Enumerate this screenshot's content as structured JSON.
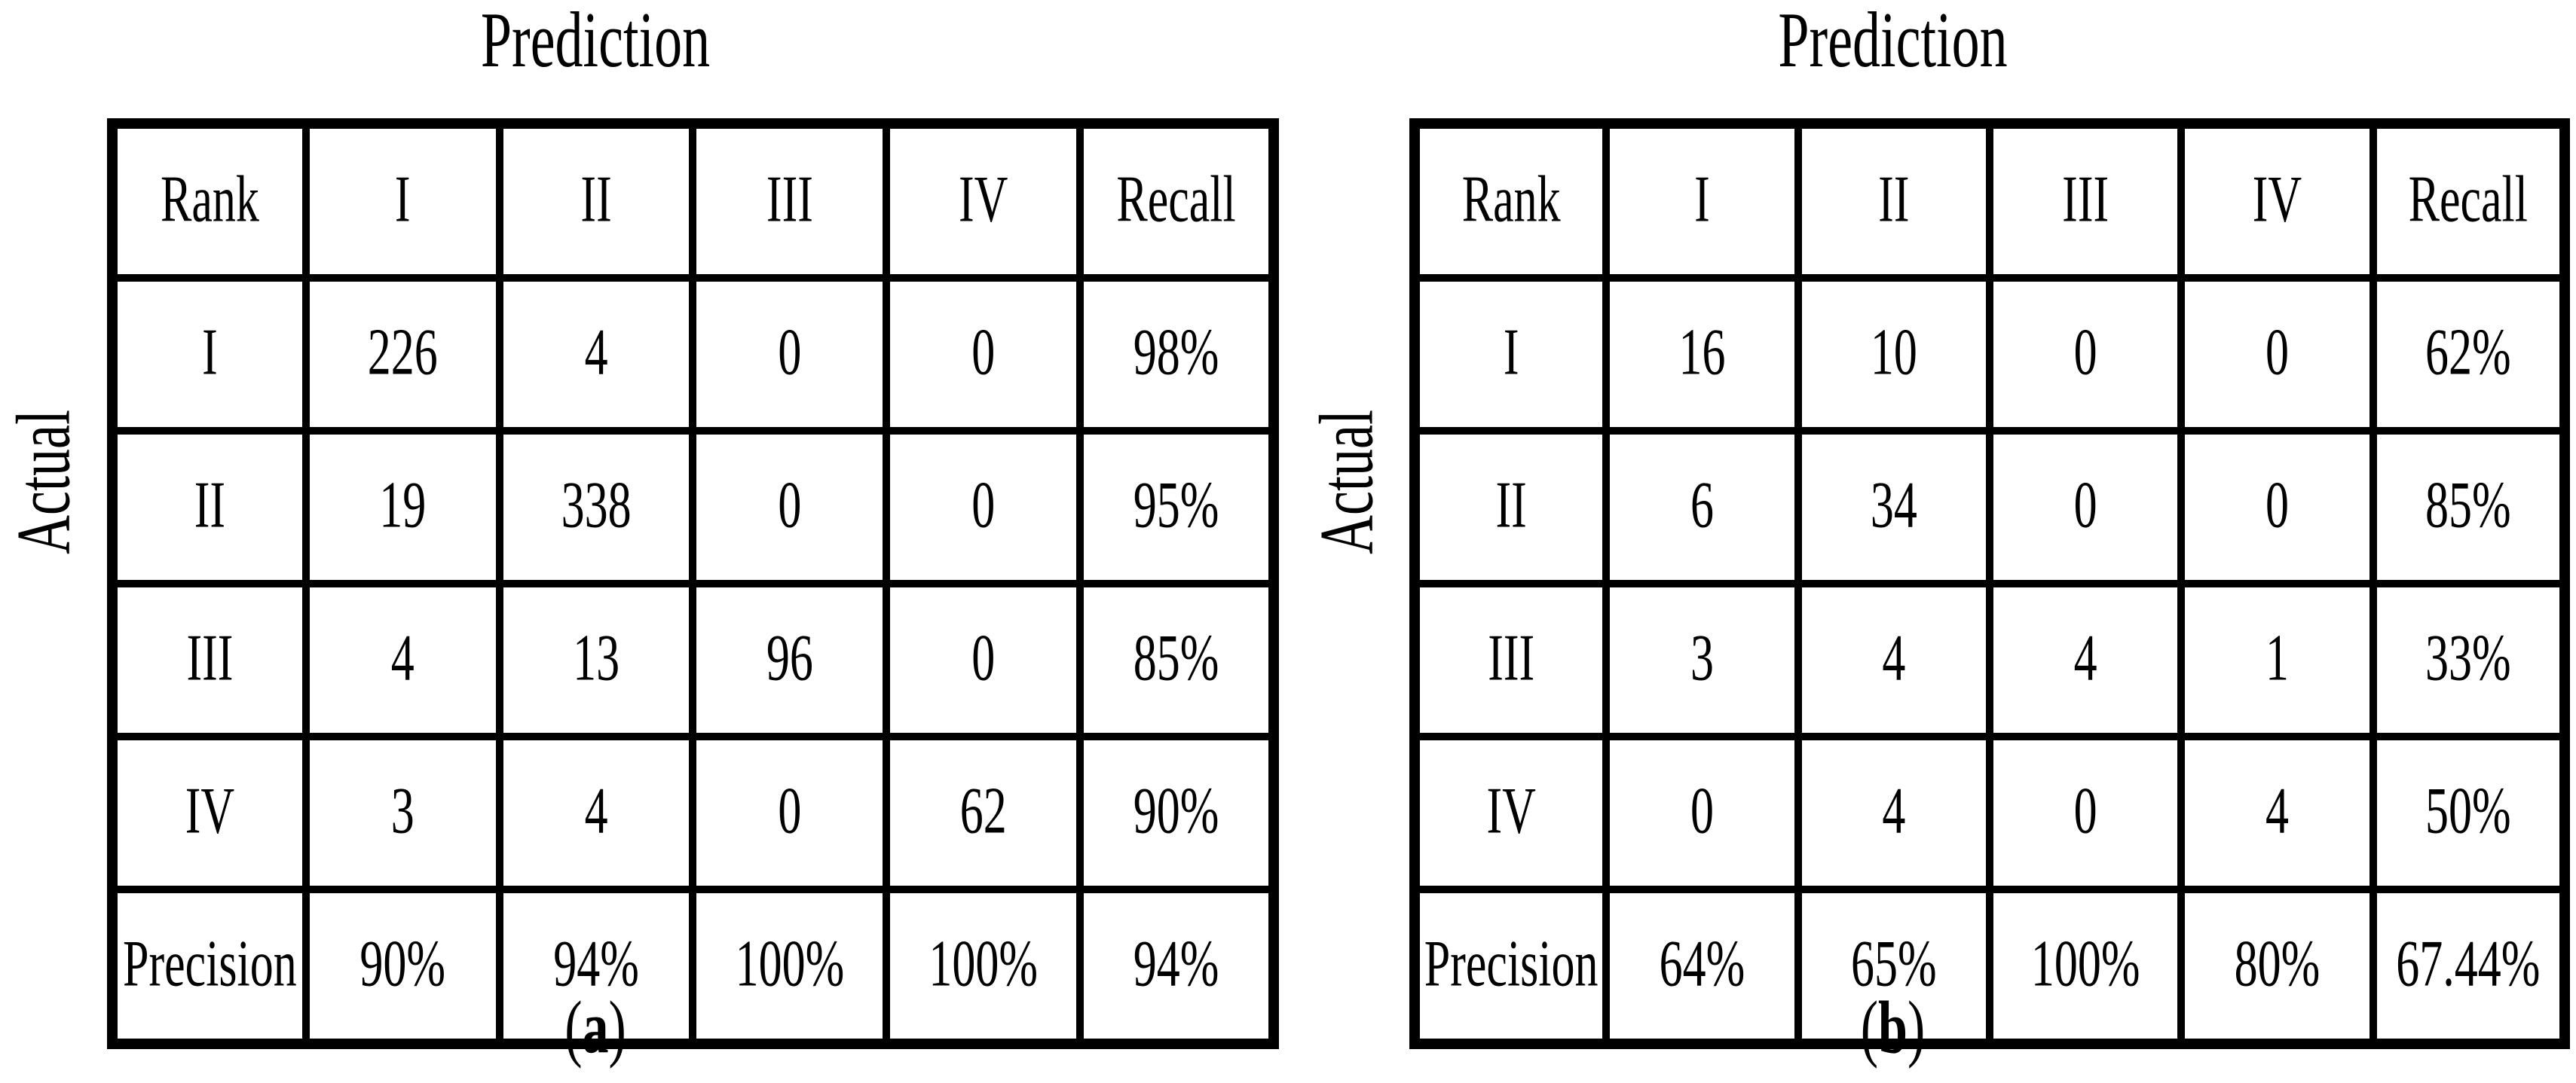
{
  "figure_type": "confusion-matrix-pair",
  "colors": {
    "diagonal_rank_i": "#FBE2D5",
    "diagonal_rank_ii": "#BDD7EE",
    "diagonal_rank_iii": "#D9D9D9",
    "diagonal_rank_iv": "#C6E0B4",
    "metric_cell_bg": "#F2F2F2",
    "overall_accuracy_bg": "#FFFF00",
    "grid_border": "#000000"
  },
  "panels": [
    {
      "title": "Prediction",
      "axis_label": "Actual",
      "caption_open": "(",
      "caption_letter": "a",
      "caption_close": ")",
      "header": [
        "Rank",
        "I",
        "II",
        "III",
        "IV",
        "Recall"
      ],
      "rows": [
        {
          "label": "I",
          "values": [
            "226",
            "4",
            "0",
            "0",
            "98%"
          ]
        },
        {
          "label": "II",
          "values": [
            "19",
            "338",
            "0",
            "0",
            "95%"
          ]
        },
        {
          "label": "III",
          "values": [
            "4",
            "13",
            "96",
            "0",
            "85%"
          ]
        },
        {
          "label": "IV",
          "values": [
            "3",
            "4",
            "0",
            "62",
            "90%"
          ]
        },
        {
          "label": "Precision",
          "values": [
            "90%",
            "94%",
            "100%",
            "100%",
            "94%"
          ]
        }
      ]
    },
    {
      "title": "Prediction",
      "axis_label": "Actual",
      "caption_open": "(",
      "caption_letter": "b",
      "caption_close": ")",
      "header": [
        "Rank",
        "I",
        "II",
        "III",
        "IV",
        "Recall"
      ],
      "rows": [
        {
          "label": "I",
          "values": [
            "16",
            "10",
            "0",
            "0",
            "62%"
          ]
        },
        {
          "label": "II",
          "values": [
            "6",
            "34",
            "0",
            "0",
            "85%"
          ]
        },
        {
          "label": "III",
          "values": [
            "3",
            "4",
            "4",
            "1",
            "33%"
          ]
        },
        {
          "label": "IV",
          "values": [
            "0",
            "4",
            "0",
            "4",
            "50%"
          ]
        },
        {
          "label": "Precision",
          "values": [
            "64%",
            "65%",
            "100%",
            "80%",
            "67.44%"
          ]
        }
      ]
    }
  ],
  "chart_data": [
    {
      "type": "table",
      "subtype": "confusion-matrix",
      "title": "Prediction",
      "row_axis_label": "Actual",
      "col_axis_label": "Prediction",
      "caption": "(a)",
      "classes": [
        "I",
        "II",
        "III",
        "IV"
      ],
      "matrix": [
        [
          226,
          4,
          0,
          0
        ],
        [
          19,
          338,
          0,
          0
        ],
        [
          4,
          13,
          96,
          0
        ],
        [
          3,
          4,
          0,
          62
        ]
      ],
      "recall_percent": [
        98,
        95,
        85,
        90
      ],
      "precision_percent": [
        90,
        94,
        100,
        100
      ],
      "overall_percent": 94
    },
    {
      "type": "table",
      "subtype": "confusion-matrix",
      "title": "Prediction",
      "row_axis_label": "Actual",
      "col_axis_label": "Prediction",
      "caption": "(b)",
      "classes": [
        "I",
        "II",
        "III",
        "IV"
      ],
      "matrix": [
        [
          16,
          10,
          0,
          0
        ],
        [
          6,
          34,
          0,
          0
        ],
        [
          3,
          4,
          4,
          1
        ],
        [
          0,
          4,
          0,
          4
        ]
      ],
      "recall_percent": [
        62,
        85,
        33,
        50
      ],
      "precision_percent": [
        64,
        65,
        100,
        80
      ],
      "overall_percent": 67.44
    }
  ]
}
